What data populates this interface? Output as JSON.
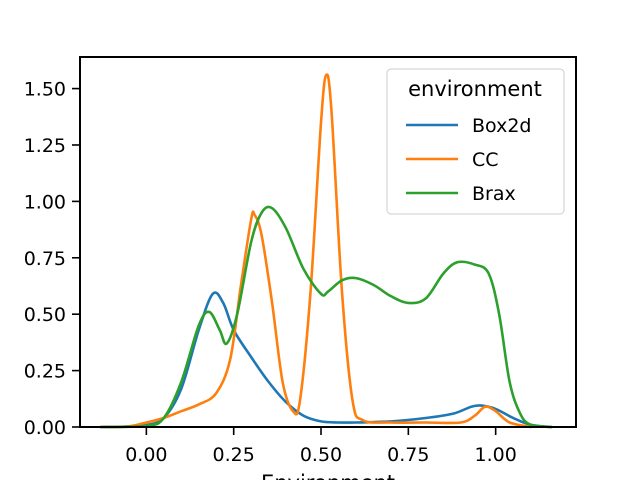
{
  "chart_data": {
    "type": "line",
    "xlabel": "Environment",
    "ylabel": "",
    "xlim": [
      -0.19,
      1.23
    ],
    "ylim": [
      0.0,
      1.64
    ],
    "xticks": [
      "0.00",
      "0.25",
      "0.50",
      "0.75",
      "1.00"
    ],
    "yticks": [
      "0.00",
      "0.25",
      "0.50",
      "0.75",
      "1.00",
      "1.25",
      "1.50"
    ],
    "grid": false,
    "legend": {
      "title": "environment",
      "placement": "top-right"
    },
    "series": [
      {
        "name": "Box2d",
        "color": "#1f77b4",
        "points": [
          [
            -0.13,
            0.0
          ],
          [
            -0.05,
            0.002
          ],
          [
            0.0,
            0.008
          ],
          [
            0.05,
            0.04
          ],
          [
            0.1,
            0.17
          ],
          [
            0.15,
            0.43
          ],
          [
            0.19,
            0.59
          ],
          [
            0.22,
            0.55
          ],
          [
            0.25,
            0.43
          ],
          [
            0.3,
            0.31
          ],
          [
            0.35,
            0.2
          ],
          [
            0.4,
            0.11
          ],
          [
            0.45,
            0.05
          ],
          [
            0.5,
            0.025
          ],
          [
            0.55,
            0.02
          ],
          [
            0.6,
            0.02
          ],
          [
            0.7,
            0.025
          ],
          [
            0.8,
            0.04
          ],
          [
            0.88,
            0.06
          ],
          [
            0.93,
            0.09
          ],
          [
            0.96,
            0.095
          ],
          [
            1.0,
            0.08
          ],
          [
            1.05,
            0.04
          ],
          [
            1.1,
            0.01
          ],
          [
            1.16,
            0.0
          ]
        ]
      },
      {
        "name": "CC",
        "color": "#ff7f0e",
        "points": [
          [
            -0.13,
            0.0
          ],
          [
            -0.05,
            0.003
          ],
          [
            0.0,
            0.02
          ],
          [
            0.05,
            0.04
          ],
          [
            0.1,
            0.07
          ],
          [
            0.15,
            0.1
          ],
          [
            0.2,
            0.15
          ],
          [
            0.24,
            0.3
          ],
          [
            0.27,
            0.62
          ],
          [
            0.3,
            0.92
          ],
          [
            0.31,
            0.94
          ],
          [
            0.33,
            0.85
          ],
          [
            0.36,
            0.55
          ],
          [
            0.39,
            0.2
          ],
          [
            0.42,
            0.07
          ],
          [
            0.44,
            0.12
          ],
          [
            0.47,
            0.6
          ],
          [
            0.5,
            1.35
          ],
          [
            0.515,
            1.56
          ],
          [
            0.53,
            1.4
          ],
          [
            0.56,
            0.6
          ],
          [
            0.59,
            0.12
          ],
          [
            0.62,
            0.03
          ],
          [
            0.7,
            0.02
          ],
          [
            0.8,
            0.02
          ],
          [
            0.9,
            0.02
          ],
          [
            0.94,
            0.05
          ],
          [
            0.97,
            0.09
          ],
          [
            1.0,
            0.07
          ],
          [
            1.04,
            0.02
          ],
          [
            1.1,
            0.0
          ]
        ]
      },
      {
        "name": "Brax",
        "color": "#2ca02c",
        "points": [
          [
            -0.13,
            0.0
          ],
          [
            0.0,
            0.005
          ],
          [
            0.05,
            0.04
          ],
          [
            0.1,
            0.2
          ],
          [
            0.15,
            0.45
          ],
          [
            0.18,
            0.51
          ],
          [
            0.21,
            0.43
          ],
          [
            0.23,
            0.37
          ],
          [
            0.26,
            0.5
          ],
          [
            0.3,
            0.82
          ],
          [
            0.33,
            0.95
          ],
          [
            0.36,
            0.97
          ],
          [
            0.4,
            0.88
          ],
          [
            0.45,
            0.7
          ],
          [
            0.5,
            0.59
          ],
          [
            0.52,
            0.6
          ],
          [
            0.56,
            0.65
          ],
          [
            0.6,
            0.66
          ],
          [
            0.65,
            0.63
          ],
          [
            0.7,
            0.58
          ],
          [
            0.75,
            0.55
          ],
          [
            0.8,
            0.57
          ],
          [
            0.85,
            0.68
          ],
          [
            0.89,
            0.73
          ],
          [
            0.94,
            0.72
          ],
          [
            0.98,
            0.68
          ],
          [
            1.01,
            0.5
          ],
          [
            1.04,
            0.2
          ],
          [
            1.07,
            0.06
          ],
          [
            1.1,
            0.01
          ],
          [
            1.16,
            0.0
          ]
        ]
      }
    ]
  }
}
